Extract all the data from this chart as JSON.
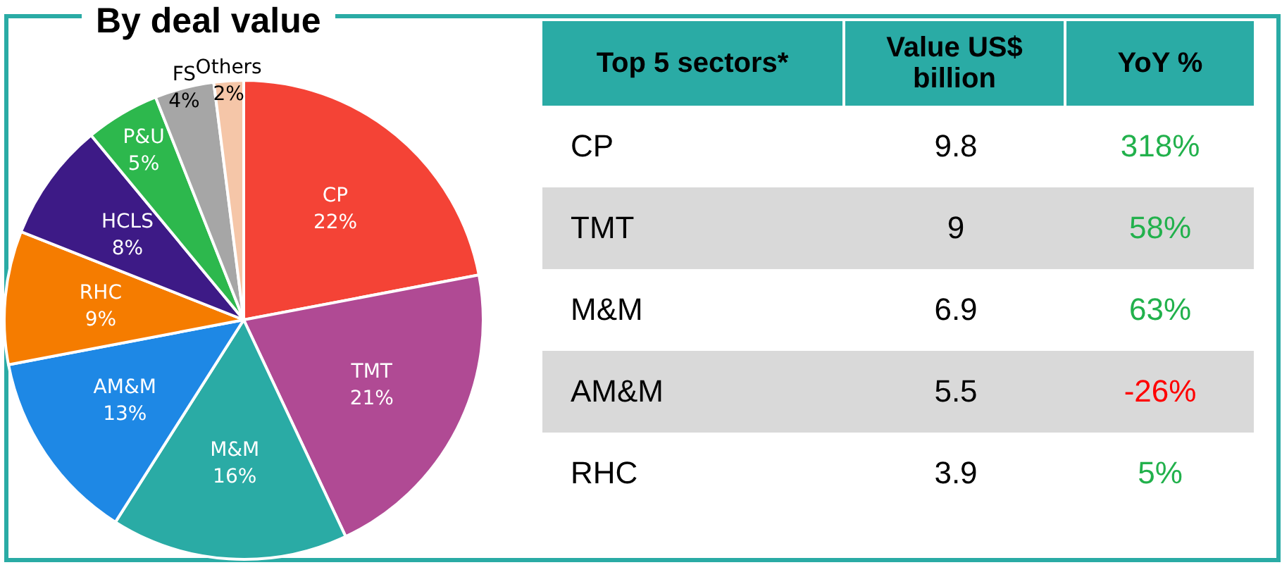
{
  "chart_data": [
    {
      "type": "pie",
      "title": "By deal value",
      "categories": [
        "CP",
        "TMT",
        "M&M",
        "AM&M",
        "RHC",
        "HCLS",
        "P&U",
        "FS",
        "Others"
      ],
      "values": [
        22,
        21,
        16,
        13,
        9,
        8,
        5,
        4,
        2
      ],
      "colors": [
        "#f44336",
        "#b04a94",
        "#2aaba5",
        "#1e88e5",
        "#f57c00",
        "#3d1a86",
        "#2db84d",
        "#a6a6a6",
        "#f5c6a8"
      ],
      "value_labels": [
        "22%",
        "21%",
        "16%",
        "13%",
        "9%",
        "8%",
        "5%",
        "4%",
        "2%"
      ],
      "legend": false
    },
    {
      "type": "other",
      "data_labels": true,
      "ylabel": "Top 5 sectors*",
      "categories": [
        "CP",
        "TMT",
        "M&M",
        "AM&M",
        "RHC"
      ],
      "series": [
        {
          "name": "Value US$ billion",
          "values": [
            9.8,
            9,
            6.9,
            5.5,
            3.9
          ]
        },
        {
          "name": "YoY %",
          "colors": [
            "#22b14c",
            "#22b14c",
            "#22b14c",
            "#ff0000",
            "#22b14c"
          ],
          "values": [
            318,
            58,
            63,
            -26,
            5
          ],
          "value_labels": [
            "318%",
            "58%",
            "63%",
            "-26%",
            "5%"
          ]
        }
      ]
    }
  ]
}
